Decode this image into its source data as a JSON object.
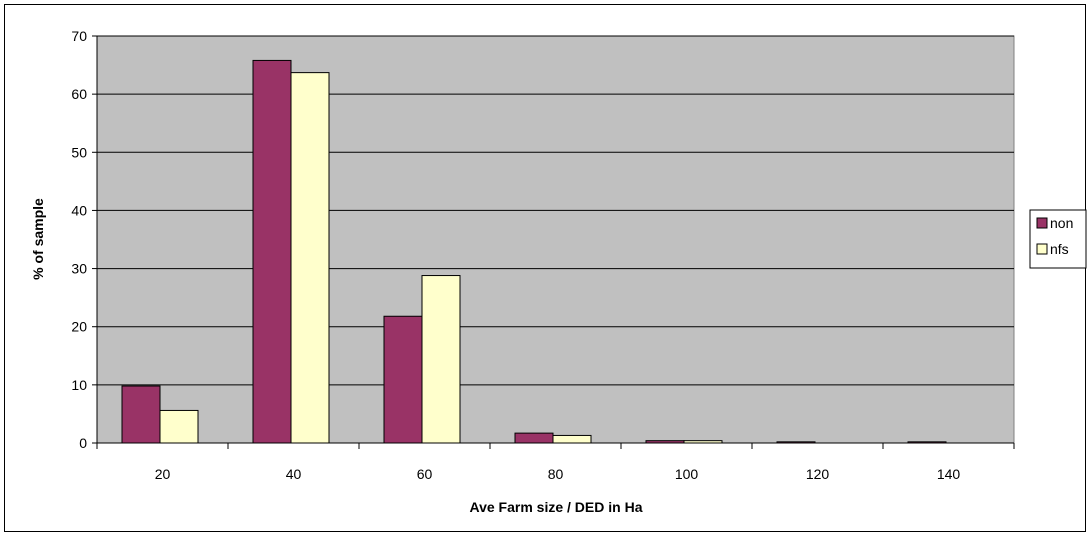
{
  "chart_data": {
    "type": "bar",
    "categories": [
      "20",
      "40",
      "60",
      "80",
      "100",
      "120",
      "140"
    ],
    "series": [
      {
        "name": "non",
        "values": [
          9.8,
          65.8,
          21.8,
          1.7,
          0.4,
          0.2,
          0.2
        ]
      },
      {
        "name": "nfs",
        "values": [
          5.6,
          63.7,
          28.8,
          1.3,
          0.4,
          0,
          0
        ]
      }
    ],
    "title": "",
    "xlabel": "Ave Farm size / DED in Ha",
    "ylabel": "% of sample",
    "ylim": [
      0,
      70
    ],
    "yticks": [
      0,
      10,
      20,
      30,
      40,
      50,
      60,
      70
    ],
    "grid": true,
    "legend": "right",
    "colors": {
      "non": "#993366",
      "nfs": "#ffffcc",
      "plot_background": "#c0c0c0",
      "gridline": "#000000"
    }
  }
}
